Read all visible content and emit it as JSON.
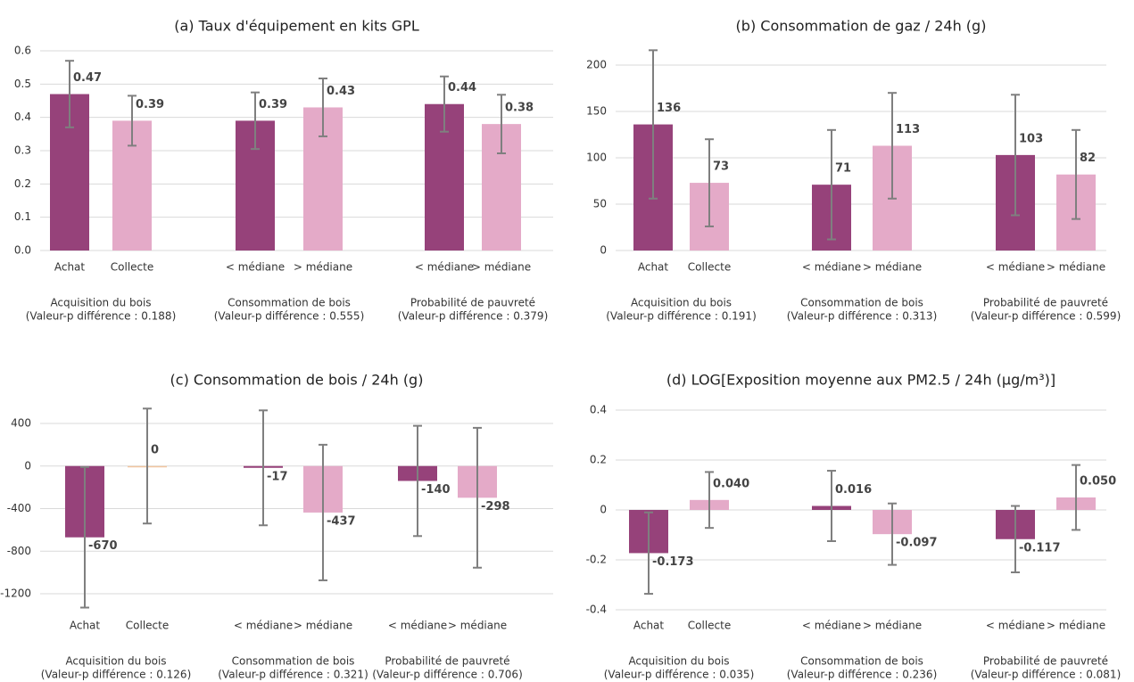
{
  "chart_data": [
    {
      "type": "bar",
      "title": "(a) Taux d'équipement en kits GPL",
      "categories": [
        "Achat",
        "Collecte",
        "< médiane",
        "> médiane",
        "< médiane",
        "> médiane"
      ],
      "groups": [
        {
          "label": "Acquisition du bois",
          "note": "(Valeur-p différence : 0.188)"
        },
        {
          "label": "Consommation de bois",
          "note": "(Valeur-p différence : 0.555)"
        },
        {
          "label": "Probabilité de pauvreté",
          "note": "(Valeur-p différence : 0.379)"
        }
      ],
      "values": [
        0.47,
        0.39,
        0.39,
        0.43,
        0.44,
        0.38
      ],
      "errors": [
        0.1,
        0.075,
        0.085,
        0.087,
        0.083,
        0.088
      ],
      "colors": [
        "#96427a",
        "#e4aac8",
        "#96427a",
        "#e4aac8",
        "#96427a",
        "#e4aac8"
      ],
      "ylim": [
        0,
        0.6
      ],
      "yticks": [
        {
          "value": 0,
          "label": "0.0"
        },
        0.1,
        0.2,
        0.3,
        0.4,
        0.5,
        0.6
      ],
      "grid": true
    },
    {
      "type": "bar",
      "title": "(b) Consommation de gaz / 24h (g)",
      "categories": [
        "Achat",
        "Collecte",
        "< médiane",
        "> médiane",
        "< médiane",
        "> médiane"
      ],
      "groups": [
        {
          "label": "Acquisition du bois",
          "note": "(Valeur-p différence :  0.191)"
        },
        {
          "label": "Consommation de bois",
          "note": "(Valeur-p différence : 0.313)"
        },
        {
          "label": "Probabilité de pauvreté",
          "note": "(Valeur-p différence : 0.599)"
        }
      ],
      "values": [
        136,
        73,
        71,
        113,
        103,
        82
      ],
      "errors": [
        80,
        47,
        59,
        57,
        65,
        48
      ],
      "colors": [
        "#96427a",
        "#e4aac8",
        "#96427a",
        "#e4aac8",
        "#96427a",
        "#e4aac8"
      ],
      "ylim": [
        0,
        200
      ],
      "yticks": [
        0,
        50,
        100,
        150,
        200
      ],
      "grid": true
    },
    {
      "type": "bar",
      "title": "(c) Consommation de bois / 24h (g)",
      "categories": [
        "Achat",
        "Collecte",
        "< médiane",
        "> médiane",
        "< médiane",
        "> médiane"
      ],
      "groups": [
        {
          "label": "Acquisition du bois",
          "note": "(Valeur-p différence : 0.126)"
        },
        {
          "label": "Consommation de bois",
          "note": "(Valeur-p différence : 0.321)"
        },
        {
          "label": "Probabilité de pauvreté",
          "note": "(Valeur-p différence : 0.706)"
        }
      ],
      "values": [
        -670,
        0,
        -17,
        -437,
        -140,
        -298
      ],
      "errors": [
        660,
        540,
        540,
        637,
        518,
        657
      ],
      "colors": [
        "#96427a",
        "#f2c6a0",
        "#96427a",
        "#e4aac8",
        "#96427a",
        "#e4aac8"
      ],
      "ylim": [
        -1200,
        400
      ],
      "yticks": [
        -1200,
        -800,
        -400,
        0,
        400
      ],
      "grid": true
    },
    {
      "type": "bar",
      "title": "(d) LOG[Exposition moyenne aux PM2.5 / 24h (µg/m³)]",
      "categories": [
        "Achat",
        "Collecte",
        "< médiane",
        "> médiane",
        "< médiane",
        "> médiane"
      ],
      "groups": [
        {
          "label": "Acquisition du bois",
          "note": "(Valeur-p différence : 0.035)"
        },
        {
          "label": "Consommation de bois",
          "note": "(Valeur-p différence : 0.236)"
        },
        {
          "label": "Probabilité de pauvreté",
          "note": "(Valeur-p différence : 0.081)"
        }
      ],
      "values": [
        -0.173,
        0.04,
        0.016,
        -0.097,
        -0.117,
        0.05
      ],
      "value_labels": [
        "-0.173",
        "0.040",
        "0.016",
        "-0.097",
        "-0.117",
        "0.050"
      ],
      "errors": [
        0.163,
        0.112,
        0.141,
        0.123,
        0.133,
        0.13
      ],
      "colors": [
        "#96427a",
        "#e4aac8",
        "#96427a",
        "#e4aac8",
        "#96427a",
        "#e4aac8"
      ],
      "ylim": [
        -0.4,
        0.4
      ],
      "yticks": [
        -0.4,
        -0.2,
        0,
        0.2,
        0.4
      ],
      "grid": true
    }
  ]
}
